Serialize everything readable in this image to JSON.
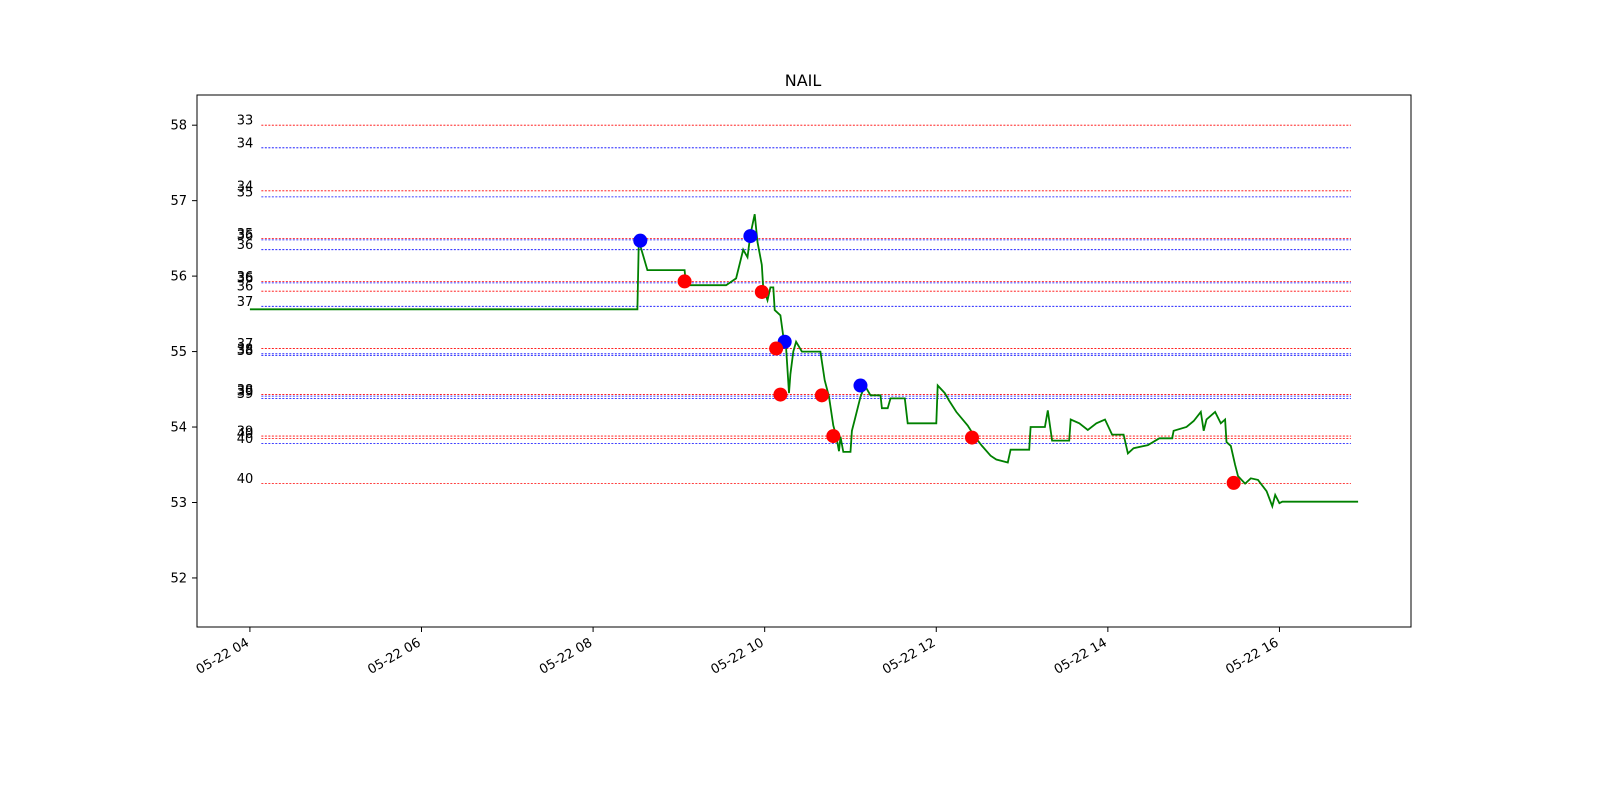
{
  "chart_data": {
    "type": "line",
    "title": "NAIL",
    "xlabel": "",
    "ylabel": "",
    "ylim": [
      51.35,
      58.4
    ],
    "xlim": [
      "2024-05-22T03:23",
      "2024-05-22T17:32"
    ],
    "x_ticks": [
      {
        "t": "2024-05-22T04:00",
        "label": "05-22 04"
      },
      {
        "t": "2024-05-22T06:00",
        "label": "05-22 06"
      },
      {
        "t": "2024-05-22T08:00",
        "label": "05-22 08"
      },
      {
        "t": "2024-05-22T10:00",
        "label": "05-22 10"
      },
      {
        "t": "2024-05-22T12:00",
        "label": "05-22 12"
      },
      {
        "t": "2024-05-22T14:00",
        "label": "05-22 14"
      },
      {
        "t": "2024-05-22T16:00",
        "label": "05-22 16"
      }
    ],
    "y_ticks": [
      52,
      53,
      54,
      55,
      56,
      57,
      58
    ],
    "grid": false,
    "series": [
      {
        "color": "#008000",
        "points": [
          [
            "2024-05-22T04:00",
            55.56
          ],
          [
            "2024-05-22T08:31",
            55.56
          ],
          [
            "2024-05-22T08:32",
            56.47
          ],
          [
            "2024-05-22T08:38",
            56.08
          ],
          [
            "2024-05-22T09:04",
            56.08
          ],
          [
            "2024-05-22T09:05",
            55.88
          ],
          [
            "2024-05-22T09:33",
            55.88
          ],
          [
            "2024-05-22T09:40",
            55.97
          ],
          [
            "2024-05-22T09:45",
            56.35
          ],
          [
            "2024-05-22T09:48",
            56.25
          ],
          [
            "2024-05-22T09:50",
            56.55
          ],
          [
            "2024-05-22T09:53",
            56.82
          ],
          [
            "2024-05-22T09:55",
            56.45
          ],
          [
            "2024-05-22T09:58",
            56.15
          ],
          [
            "2024-05-22T09:59",
            55.85
          ],
          [
            "2024-05-22T10:02",
            55.68
          ],
          [
            "2024-05-22T10:04",
            55.85
          ],
          [
            "2024-05-22T10:06",
            55.85
          ],
          [
            "2024-05-22T10:07",
            55.55
          ],
          [
            "2024-05-22T10:11",
            55.48
          ],
          [
            "2024-05-22T10:13",
            55.2
          ],
          [
            "2024-05-22T10:15",
            55.05
          ],
          [
            "2024-05-22T10:17",
            54.45
          ],
          [
            "2024-05-22T10:18",
            54.7
          ],
          [
            "2024-05-22T10:20",
            55.0
          ],
          [
            "2024-05-22T10:22",
            55.13
          ],
          [
            "2024-05-22T10:26",
            55.0
          ],
          [
            "2024-05-22T10:39",
            55.0
          ],
          [
            "2024-05-22T10:42",
            54.62
          ],
          [
            "2024-05-22T10:45",
            54.4
          ],
          [
            "2024-05-22T10:48",
            54.02
          ],
          [
            "2024-05-22T10:50",
            53.88
          ],
          [
            "2024-05-22T10:52",
            53.68
          ],
          [
            "2024-05-22T10:53",
            53.87
          ],
          [
            "2024-05-22T10:55",
            53.67
          ],
          [
            "2024-05-22T11:00",
            53.67
          ],
          [
            "2024-05-22T11:01",
            53.95
          ],
          [
            "2024-05-22T11:03",
            54.1
          ],
          [
            "2024-05-22T11:07",
            54.4
          ],
          [
            "2024-05-22T11:10",
            54.55
          ],
          [
            "2024-05-22T11:14",
            54.42
          ],
          [
            "2024-05-22T11:21",
            54.42
          ],
          [
            "2024-05-22T11:22",
            54.25
          ],
          [
            "2024-05-22T11:26",
            54.25
          ],
          [
            "2024-05-22T11:28",
            54.38
          ],
          [
            "2024-05-22T11:38",
            54.38
          ],
          [
            "2024-05-22T11:40",
            54.05
          ],
          [
            "2024-05-22T11:43",
            54.05
          ],
          [
            "2024-05-22T12:00",
            54.05
          ],
          [
            "2024-05-22T12:01",
            54.55
          ],
          [
            "2024-05-22T12:06",
            54.45
          ],
          [
            "2024-05-22T12:09",
            54.35
          ],
          [
            "2024-05-22T12:14",
            54.2
          ],
          [
            "2024-05-22T12:22",
            54.02
          ],
          [
            "2024-05-22T12:27",
            53.87
          ],
          [
            "2024-05-22T12:32",
            53.75
          ],
          [
            "2024-05-22T12:38",
            53.62
          ],
          [
            "2024-05-22T12:42",
            53.57
          ],
          [
            "2024-05-22T12:50",
            53.53
          ],
          [
            "2024-05-22T12:52",
            53.7
          ],
          [
            "2024-05-22T13:05",
            53.7
          ],
          [
            "2024-05-22T13:06",
            54.0
          ],
          [
            "2024-05-22T13:16",
            54.0
          ],
          [
            "2024-05-22T13:18",
            54.22
          ],
          [
            "2024-05-22T13:21",
            53.82
          ],
          [
            "2024-05-22T13:33",
            53.82
          ],
          [
            "2024-05-22T13:34",
            54.1
          ],
          [
            "2024-05-22T13:40",
            54.05
          ],
          [
            "2024-05-22T13:46",
            53.96
          ],
          [
            "2024-05-22T13:52",
            54.05
          ],
          [
            "2024-05-22T13:58",
            54.1
          ],
          [
            "2024-05-22T14:03",
            53.9
          ],
          [
            "2024-05-22T14:11",
            53.9
          ],
          [
            "2024-05-22T14:14",
            53.65
          ],
          [
            "2024-05-22T14:18",
            53.72
          ],
          [
            "2024-05-22T14:28",
            53.76
          ],
          [
            "2024-05-22T14:36",
            53.85
          ],
          [
            "2024-05-22T14:45",
            53.85
          ],
          [
            "2024-05-22T14:46",
            53.95
          ],
          [
            "2024-05-22T14:55",
            54.0
          ],
          [
            "2024-05-22T15:00",
            54.08
          ],
          [
            "2024-05-22T15:05",
            54.2
          ],
          [
            "2024-05-22T15:07",
            53.95
          ],
          [
            "2024-05-22T15:09",
            54.1
          ],
          [
            "2024-05-22T15:15",
            54.2
          ],
          [
            "2024-05-22T15:19",
            54.05
          ],
          [
            "2024-05-22T15:22",
            54.1
          ],
          [
            "2024-05-22T15:23",
            53.8
          ],
          [
            "2024-05-22T15:26",
            53.75
          ],
          [
            "2024-05-22T15:29",
            53.5
          ],
          [
            "2024-05-22T15:31",
            53.35
          ],
          [
            "2024-05-22T15:36",
            53.25
          ],
          [
            "2024-05-22T15:40",
            53.32
          ],
          [
            "2024-05-22T15:45",
            53.3
          ],
          [
            "2024-05-22T15:51",
            53.15
          ],
          [
            "2024-05-22T15:55",
            52.95
          ],
          [
            "2024-05-22T15:57",
            53.1
          ],
          [
            "2024-05-22T16:00",
            52.99
          ],
          [
            "2024-05-22T16:02",
            53.01
          ],
          [
            "2024-05-22T16:55",
            53.01
          ]
        ]
      }
    ],
    "markers": [
      {
        "t": "2024-05-22T08:33",
        "y": 56.47,
        "color": "#0000ff"
      },
      {
        "t": "2024-05-22T09:50",
        "y": 56.53,
        "color": "#0000ff"
      },
      {
        "t": "2024-05-22T10:14",
        "y": 55.13,
        "color": "#0000ff"
      },
      {
        "t": "2024-05-22T11:07",
        "y": 54.55,
        "color": "#0000ff"
      },
      {
        "t": "2024-05-22T09:04",
        "y": 55.93,
        "color": "#ff0000"
      },
      {
        "t": "2024-05-22T09:58",
        "y": 55.79,
        "color": "#ff0000"
      },
      {
        "t": "2024-05-22T10:08",
        "y": 55.04,
        "color": "#ff0000"
      },
      {
        "t": "2024-05-22T10:11",
        "y": 54.43,
        "color": "#ff0000"
      },
      {
        "t": "2024-05-22T10:40",
        "y": 54.42,
        "color": "#ff0000"
      },
      {
        "t": "2024-05-22T10:48",
        "y": 53.88,
        "color": "#ff0000"
      },
      {
        "t": "2024-05-22T12:25",
        "y": 53.86,
        "color": "#ff0000"
      },
      {
        "t": "2024-05-22T15:28",
        "y": 53.26,
        "color": "#ff0000"
      }
    ],
    "levels": [
      {
        "y": 58.0,
        "label": "33",
        "color": "#ff0000"
      },
      {
        "y": 57.7,
        "label": "34",
        "color": "#0000ff"
      },
      {
        "y": 57.13,
        "label": "34",
        "color": "#ff0000"
      },
      {
        "y": 57.05,
        "label": "35",
        "color": "#0000ff"
      },
      {
        "y": 56.5,
        "label": "35",
        "color": "#ff0000"
      },
      {
        "y": 56.48,
        "label": "36",
        "color": "#0000ff"
      },
      {
        "y": 56.35,
        "label": "36",
        "color": "#0000ff"
      },
      {
        "y": 55.93,
        "label": "36",
        "color": "#ff0000"
      },
      {
        "y": 55.91,
        "label": "36",
        "color": "#0000ff"
      },
      {
        "y": 55.8,
        "label": "36",
        "color": "#ff0000"
      },
      {
        "y": 55.6,
        "label": "37",
        "color": "#0000ff"
      },
      {
        "y": 55.04,
        "label": "37",
        "color": "#ff0000"
      },
      {
        "y": 54.97,
        "label": "38",
        "color": "#0000ff"
      },
      {
        "y": 54.95,
        "label": "38",
        "color": "#0000ff"
      },
      {
        "y": 54.43,
        "label": "38",
        "color": "#ff0000"
      },
      {
        "y": 54.41,
        "label": "39",
        "color": "#0000ff"
      },
      {
        "y": 54.38,
        "label": "39",
        "color": "#0000ff"
      },
      {
        "y": 53.88,
        "label": "39",
        "color": "#ff0000"
      },
      {
        "y": 53.85,
        "label": "40",
        "color": "#ff0000"
      },
      {
        "y": 53.78,
        "label": "40",
        "color": "#0000ff"
      },
      {
        "y": 53.25,
        "label": "40",
        "color": "#ff0000"
      }
    ]
  }
}
